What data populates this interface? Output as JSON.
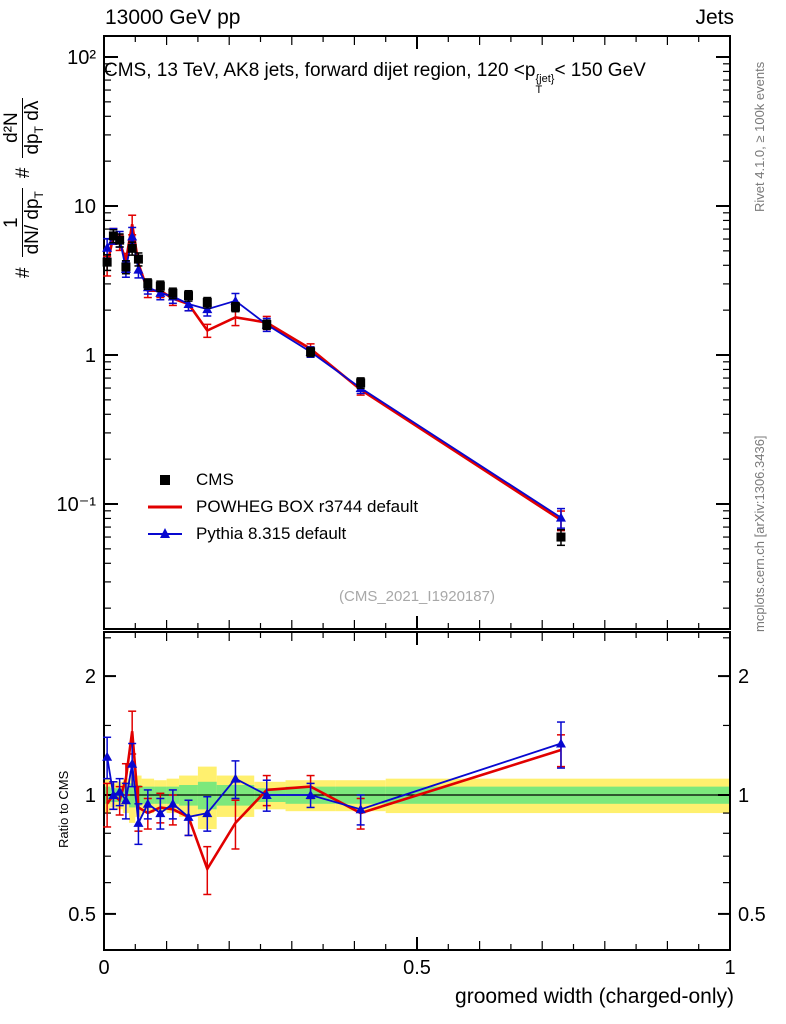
{
  "header": {
    "left": "13000 GeV pp",
    "right": "Jets"
  },
  "title": {
    "pre": "CMS, 13 TeV, AK8 jets, forward dijet region, 120 <",
    "p": "p",
    "sup": "{jet}",
    "sub": "T",
    "post": "< 150 GeV"
  },
  "ylabel": {
    "hash1": "#",
    "frac1_num": "1",
    "frac1_den_main": "dN/ dp",
    "frac1_den_sub": "T",
    "hash2": "#",
    "frac2_num": "d²N",
    "frac2_den_main": "dp",
    "frac2_den_sub": "T",
    "frac2_den_tail": " dλ"
  },
  "ratio_label": "Ratio to CMS",
  "side_notes": {
    "right_top": "Rivet 4.1.0, ≥ 100k events",
    "right_bottom": "mcplots.cern.ch [arXiv:1306.3436]"
  },
  "watermark": "(CMS_2021_I1920187)",
  "legend": [
    {
      "id": "cms",
      "label": "CMS"
    },
    {
      "id": "powheg",
      "label": "POWHEG BOX r3744 default"
    },
    {
      "id": "pythia",
      "label": "Pythia 8.315 default"
    }
  ],
  "colors": {
    "cms": "#000000",
    "powheg": "#e10000",
    "pythia": "#0808d0",
    "band_yellow": "#fff06e",
    "band_green": "#7ce87c",
    "watermark": "#a8a8a8"
  },
  "axes": {
    "x": {
      "min": 0,
      "max": 1,
      "title": "groomed width (charged-only)",
      "major": [
        {
          "v": 0,
          "label": "0"
        },
        {
          "v": 0.5,
          "label": "0.5"
        },
        {
          "v": 1,
          "label": "1"
        }
      ],
      "minor_step": 0.05
    },
    "y_main": {
      "scale": "log",
      "range": [
        0.014,
        140
      ],
      "major": [
        {
          "v": 100,
          "label": "10²"
        },
        {
          "v": 10,
          "label": "10"
        },
        {
          "v": 1,
          "label": "1"
        },
        {
          "v": 0.1,
          "label": "10⁻¹"
        }
      ]
    },
    "y_ratio": {
      "scale": "log",
      "range": [
        0.4,
        2.6
      ],
      "major": [
        {
          "v": 2,
          "label": "2"
        },
        {
          "v": 1,
          "label": "1"
        },
        {
          "v": 0.5,
          "label": "0.5"
        }
      ],
      "minor": [
        0.6,
        0.7,
        0.8,
        0.9,
        1.5,
        2.5
      ]
    }
  },
  "chart_data": {
    "type": "line",
    "title": "CMS, 13 TeV, AK8 jets, forward dijet region, 120 < pT{jet} < 150 GeV",
    "xlabel": "groomed width (charged-only)",
    "ylabel": "# 1/(dN/dpT) d2N/(dpT dlambda)",
    "x": [
      0.005,
      0.015,
      0.025,
      0.035,
      0.045,
      0.055,
      0.07,
      0.09,
      0.11,
      0.135,
      0.165,
      0.21,
      0.26,
      0.33,
      0.41,
      0.73
    ],
    "series": [
      {
        "id": "cms",
        "name": "CMS",
        "marker": "square",
        "color_key": "cms",
        "values": [
          4.2,
          6.3,
          5.9,
          3.9,
          5.2,
          4.4,
          3.0,
          2.9,
          2.6,
          2.5,
          2.25,
          2.1,
          1.6,
          1.05,
          0.65,
          0.06
        ],
        "err_rel": [
          0.12,
          0.1,
          0.1,
          0.1,
          0.1,
          0.1,
          0.08,
          0.08,
          0.08,
          0.08,
          0.08,
          0.07,
          0.07,
          0.07,
          0.08,
          0.12
        ]
      },
      {
        "id": "powheg",
        "name": "POWHEG BOX r3744 default",
        "marker": "none",
        "color_key": "powheg",
        "values": [
          3.99,
          6.3,
          5.72,
          4.29,
          7.54,
          4.09,
          2.7,
          2.7,
          2.39,
          2.2,
          1.46,
          1.79,
          1.65,
          1.1,
          0.585,
          0.078
        ],
        "err_rel": [
          0.15,
          0.12,
          0.12,
          0.12,
          0.15,
          0.12,
          0.1,
          0.1,
          0.1,
          0.1,
          0.1,
          0.12,
          0.1,
          0.08,
          0.08,
          0.15
        ]
      },
      {
        "id": "pythia",
        "name": "Pythia 8.315 default",
        "marker": "triangle",
        "color_key": "pythia",
        "values": [
          5.25,
          6.3,
          6.02,
          3.78,
          6.24,
          3.74,
          2.85,
          2.61,
          2.47,
          2.2,
          2.03,
          2.31,
          1.6,
          1.05,
          0.6,
          0.081
        ],
        "err_rel": [
          0.15,
          0.12,
          0.12,
          0.12,
          0.15,
          0.12,
          0.1,
          0.1,
          0.1,
          0.1,
          0.1,
          0.12,
          0.1,
          0.08,
          0.08,
          0.15
        ]
      }
    ],
    "ratio": {
      "powheg": {
        "values": [
          0.95,
          1.0,
          0.97,
          1.1,
          1.45,
          0.93,
          0.9,
          0.93,
          0.92,
          0.88,
          0.65,
          0.85,
          1.03,
          1.05,
          0.9,
          1.3
        ],
        "err": [
          0.12,
          0.08,
          0.08,
          0.1,
          0.18,
          0.12,
          0.08,
          0.08,
          0.08,
          0.09,
          0.09,
          0.12,
          0.09,
          0.07,
          0.08,
          0.12
        ]
      },
      "pythia": {
        "values": [
          1.25,
          1.0,
          1.02,
          0.97,
          1.2,
          0.85,
          0.95,
          0.9,
          0.95,
          0.88,
          0.9,
          1.1,
          1.0,
          1.0,
          0.92,
          1.35
        ],
        "err": [
          0.15,
          0.08,
          0.08,
          0.1,
          0.15,
          0.1,
          0.08,
          0.08,
          0.08,
          0.09,
          0.09,
          0.12,
          0.09,
          0.07,
          0.08,
          0.18
        ]
      }
    },
    "bands": {
      "edges": [
        0,
        0.01,
        0.02,
        0.03,
        0.04,
        0.05,
        0.06,
        0.08,
        0.1,
        0.12,
        0.15,
        0.18,
        0.24,
        0.29,
        0.37,
        0.45,
        1.0
      ],
      "yellow": [
        0.1,
        0.07,
        0.08,
        0.1,
        0.15,
        0.12,
        0.1,
        0.09,
        0.1,
        0.12,
        0.18,
        0.12,
        0.08,
        0.09,
        0.09,
        0.1
      ],
      "green": [
        0.05,
        0.04,
        0.04,
        0.05,
        0.07,
        0.06,
        0.05,
        0.05,
        0.05,
        0.06,
        0.08,
        0.06,
        0.04,
        0.05,
        0.05,
        0.05
      ]
    }
  }
}
